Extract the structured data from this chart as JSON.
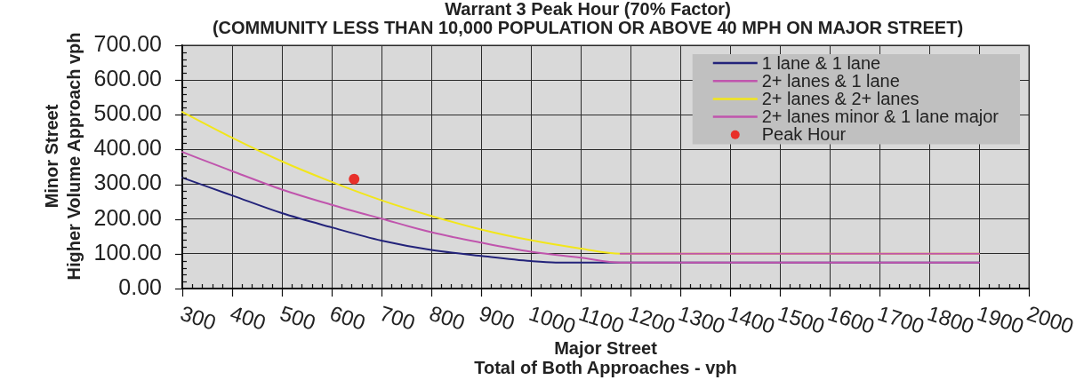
{
  "chart_data": {
    "type": "line",
    "title": "Warrant 3 Peak Hour (70% Factor)",
    "subtitle": "(COMMUNITY LESS THAN 10,000 POPULATION OR ABOVE 40 MPH ON MAJOR STREET)",
    "xlabel": "Major Street\nTotal of Both Approaches - vph",
    "ylabel": "Minor Street\nHigher Volume Approach vph",
    "series": [
      {
        "name": "1 lane & 1 lane",
        "type": "line",
        "color": "#23237a",
        "x": [
          300,
          400,
          500,
          600,
          700,
          800,
          900,
          1000,
          1050,
          1900
        ],
        "values": [
          319,
          268,
          217,
          176,
          138,
          111,
          94,
          79,
          75,
          75
        ]
      },
      {
        "name": "2+ lanes & 1 lane",
        "type": "line",
        "color": "#c055ad",
        "x": [
          300,
          400,
          500,
          600,
          700,
          800,
          900,
          1000,
          1100,
          1180,
          1900
        ],
        "values": [
          393,
          338,
          285,
          241,
          201,
          162,
          132,
          106,
          89,
          75,
          75
        ]
      },
      {
        "name": "2+ lanes & 2+ lanes",
        "type": "line",
        "color": "#f2e61a",
        "x": [
          300,
          400,
          500,
          600,
          700,
          800,
          900,
          1000,
          1100,
          1180,
          1900
        ],
        "values": [
          508,
          434,
          366,
          307,
          254,
          209,
          170,
          139,
          115,
          100,
          100
        ]
      },
      {
        "name": "2+ lanes minor & 1 lane major",
        "type": "line",
        "color": "#c055ad",
        "x": [
          1180,
          1900
        ],
        "values": [
          100,
          100
        ]
      },
      {
        "name": "Peak Hour",
        "type": "scatter",
        "marker": "circle",
        "color": "#e8302a",
        "x": [
          645
        ],
        "values": [
          315
        ]
      }
    ],
    "xlim": [
      300,
      2000
    ],
    "xticks": [
      300,
      {
        "value": 320,
        "label": null
      },
      {
        "value": 340,
        "label": null
      },
      {
        "value": 360,
        "label": null
      },
      {
        "value": 380,
        "label": null
      },
      400,
      {
        "value": 420,
        "label": null
      },
      {
        "value": 440,
        "label": null
      },
      {
        "value": 460,
        "label": null
      },
      {
        "value": 480,
        "label": null
      },
      500,
      {
        "value": 520,
        "label": null
      },
      {
        "value": 540,
        "label": null
      },
      {
        "value": 560,
        "label": null
      },
      {
        "value": 580,
        "label": null
      },
      600,
      {
        "value": 620,
        "label": null
      },
      {
        "value": 640,
        "label": null
      },
      {
        "value": 660,
        "label": null
      },
      {
        "value": 680,
        "label": null
      },
      700,
      {
        "value": 720,
        "label": null
      },
      {
        "value": 740,
        "label": null
      },
      {
        "value": 760,
        "label": null
      },
      {
        "value": 780,
        "label": null
      },
      800,
      {
        "value": 820,
        "label": null
      },
      {
        "value": 840,
        "label": null
      },
      {
        "value": 860,
        "label": null
      },
      {
        "value": 880,
        "label": null
      },
      900,
      {
        "value": 920,
        "label": null
      },
      {
        "value": 940,
        "label": null
      },
      {
        "value": 960,
        "label": null
      },
      {
        "value": 980,
        "label": null
      },
      1000,
      {
        "value": 1020,
        "label": null
      },
      {
        "value": 1040,
        "label": null
      },
      {
        "value": 1060,
        "label": null
      },
      {
        "value": 1080,
        "label": null
      },
      1100,
      {
        "value": 1120,
        "label": null
      },
      {
        "value": 1140,
        "label": null
      },
      {
        "value": 1160,
        "label": null
      },
      {
        "value": 1180,
        "label": null
      },
      1200,
      {
        "value": 1220,
        "label": null
      },
      {
        "value": 1240,
        "label": null
      },
      {
        "value": 1260,
        "label": null
      },
      {
        "value": 1280,
        "label": null
      },
      1300,
      {
        "value": 1320,
        "label": null
      },
      {
        "value": 1340,
        "label": null
      },
      {
        "value": 1360,
        "label": null
      },
      {
        "value": 1380,
        "label": null
      },
      1400,
      {
        "value": 1420,
        "label": null
      },
      {
        "value": 1440,
        "label": null
      },
      {
        "value": 1460,
        "label": null
      },
      {
        "value": 1480,
        "label": null
      },
      1500,
      {
        "value": 1520,
        "label": null
      },
      {
        "value": 1540,
        "label": null
      },
      {
        "value": 1560,
        "label": null
      },
      {
        "value": 1580,
        "label": null
      },
      1600,
      {
        "value": 1620,
        "label": null
      },
      {
        "value": 1640,
        "label": null
      },
      {
        "value": 1660,
        "label": null
      },
      {
        "value": 1680,
        "label": null
      },
      1700,
      {
        "value": 1720,
        "label": null
      },
      {
        "value": 1740,
        "label": null
      },
      {
        "value": 1760,
        "label": null
      },
      {
        "value": 1780,
        "label": null
      },
      1800,
      {
        "value": 1820,
        "label": null
      },
      {
        "value": 1840,
        "label": null
      },
      {
        "value": 1860,
        "label": null
      },
      {
        "value": 1880,
        "label": null
      },
      1900,
      {
        "value": 1920,
        "label": null
      },
      {
        "value": 1940,
        "label": null
      },
      {
        "value": 1960,
        "label": null
      },
      {
        "value": 1980,
        "label": null
      },
      2000
    ],
    "ylim": [
      0,
      700
    ],
    "yticks": [
      {
        "value": 0,
        "label": "0.00"
      },
      {
        "value": 20,
        "label": null
      },
      {
        "value": 40,
        "label": null
      },
      {
        "value": 60,
        "label": null
      },
      {
        "value": 80,
        "label": null
      },
      {
        "value": 100,
        "label": "100.00"
      },
      {
        "value": 120,
        "label": null
      },
      {
        "value": 140,
        "label": null
      },
      {
        "value": 160,
        "label": null
      },
      {
        "value": 180,
        "label": null
      },
      {
        "value": 200,
        "label": "200.00"
      },
      {
        "value": 220,
        "label": null
      },
      {
        "value": 240,
        "label": null
      },
      {
        "value": 260,
        "label": null
      },
      {
        "value": 280,
        "label": null
      },
      {
        "value": 300,
        "label": "300.00"
      },
      {
        "value": 320,
        "label": null
      },
      {
        "value": 340,
        "label": null
      },
      {
        "value": 360,
        "label": null
      },
      {
        "value": 380,
        "label": null
      },
      {
        "value": 400,
        "label": "400.00"
      },
      {
        "value": 420,
        "label": null
      },
      {
        "value": 440,
        "label": null
      },
      {
        "value": 460,
        "label": null
      },
      {
        "value": 480,
        "label": null
      },
      {
        "value": 500,
        "label": "500.00"
      },
      {
        "value": 520,
        "label": null
      },
      {
        "value": 540,
        "label": null
      },
      {
        "value": 560,
        "label": null
      },
      {
        "value": 580,
        "label": null
      },
      {
        "value": 600,
        "label": "600.00"
      },
      {
        "value": 620,
        "label": null
      },
      {
        "value": 640,
        "label": null
      },
      {
        "value": 660,
        "label": null
      },
      {
        "value": 680,
        "label": null
      },
      {
        "value": 700,
        "label": "700.00"
      }
    ],
    "grid": true,
    "legend": "top right",
    "marker": "none"
  }
}
